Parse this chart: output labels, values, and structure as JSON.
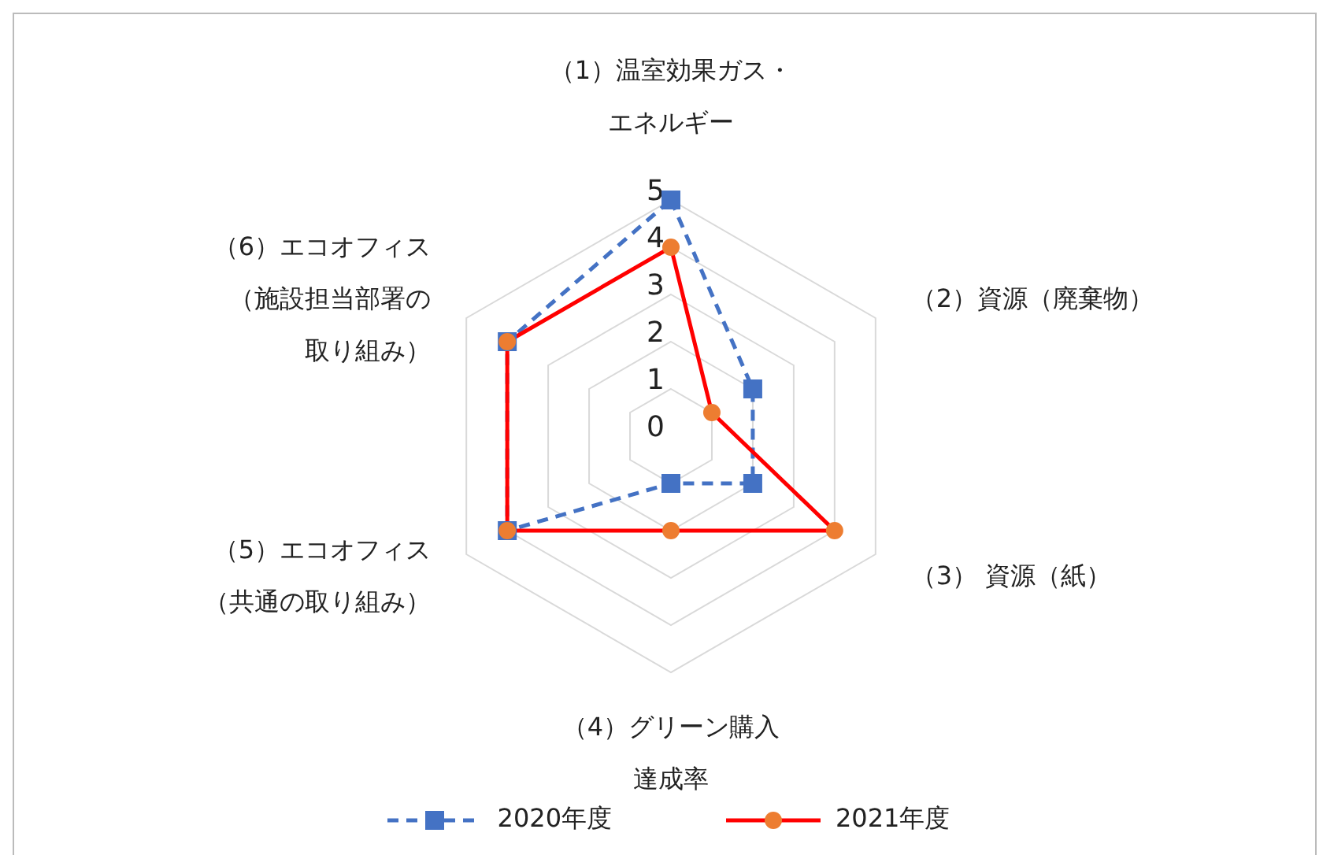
{
  "chart_data": {
    "type": "radar",
    "categories": [
      "（1）温室効果ガス・エネルギー",
      "（2）資源（廃棄物）",
      "（3） 資源（紙）",
      "（4）グリーン購入達成率",
      "（5）エコオフィス（共通の取り組み）",
      "（6）エコオフィス（施設担当部署の取り組み）"
    ],
    "series": [
      {
        "name": "2020年度",
        "color": "#4472c4",
        "values": [
          5,
          2,
          2,
          1,
          4,
          4
        ],
        "marker": "square",
        "line_style": "dashed"
      },
      {
        "name": "2021年度",
        "color": "#ff0000",
        "values": [
          4,
          1,
          4,
          2,
          4,
          4
        ],
        "marker": "circle",
        "line_style": "solid"
      }
    ],
    "ylim": [
      0,
      5
    ],
    "yticks": [
      0,
      1,
      2,
      3,
      4,
      5
    ],
    "grid": true,
    "legend": "bottom"
  }
}
